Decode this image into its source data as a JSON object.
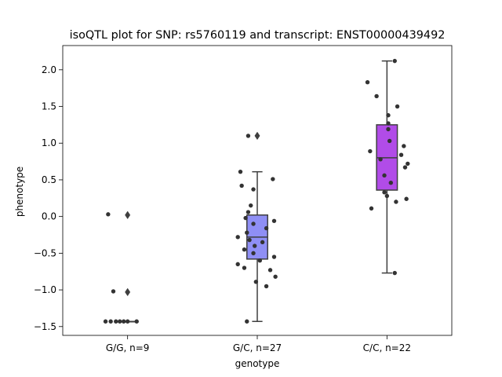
{
  "chart_data": {
    "type": "box",
    "title": "isoQTL plot for SNP: rs5760119 and transcript: ENST00000439492",
    "xlabel": "genotype",
    "ylabel": "phenotype",
    "ylim": [
      -1.62,
      2.33
    ],
    "yticks": [
      -1.5,
      -1.0,
      -0.5,
      0.0,
      0.5,
      1.0,
      1.5,
      2.0
    ],
    "ytick_labels": [
      "−1.5",
      "−1.0",
      "−0.5",
      "0.0",
      "0.5",
      "1.0",
      "1.5",
      "2.0"
    ],
    "categories": [
      "G/G, n=9",
      "G/C, n=27",
      "C/C, n=22"
    ],
    "grid": false,
    "boxes": [
      {
        "category": "G/G, n=9",
        "color": "#5e5ef2",
        "q1": -1.43,
        "median": -1.43,
        "q3": -1.43,
        "whisker_low": -1.43,
        "whisker_high": -1.43,
        "outliers": [
          0.02,
          -1.03
        ],
        "points": [
          {
            "dx": -0.15,
            "y": 0.03
          },
          {
            "dx": -0.11,
            "y": -1.02
          },
          {
            "dx": -0.17,
            "y": -1.43
          },
          {
            "dx": -0.13,
            "y": -1.43
          },
          {
            "dx": -0.09,
            "y": -1.43
          },
          {
            "dx": -0.06,
            "y": -1.43
          },
          {
            "dx": -0.03,
            "y": -1.43
          },
          {
            "dx": 0.0,
            "y": -1.43
          },
          {
            "dx": 0.07,
            "y": -1.43
          }
        ]
      },
      {
        "category": "G/C, n=27",
        "color": "#8f8ff5",
        "q1": -0.58,
        "median": -0.28,
        "q3": 0.02,
        "whisker_low": -1.43,
        "whisker_high": 0.61,
        "outliers": [
          1.1
        ],
        "points": [
          {
            "dx": -0.07,
            "y": 1.1
          },
          {
            "dx": -0.13,
            "y": 0.61
          },
          {
            "dx": 0.12,
            "y": 0.51
          },
          {
            "dx": -0.12,
            "y": 0.42
          },
          {
            "dx": -0.03,
            "y": 0.37
          },
          {
            "dx": -0.05,
            "y": 0.15
          },
          {
            "dx": -0.07,
            "y": 0.06
          },
          {
            "dx": -0.09,
            "y": -0.02
          },
          {
            "dx": 0.13,
            "y": -0.06
          },
          {
            "dx": -0.03,
            "y": -0.1
          },
          {
            "dx": 0.07,
            "y": -0.16
          },
          {
            "dx": -0.08,
            "y": -0.22
          },
          {
            "dx": -0.15,
            "y": -0.28
          },
          {
            "dx": -0.06,
            "y": -0.32
          },
          {
            "dx": 0.04,
            "y": -0.35
          },
          {
            "dx": -0.02,
            "y": -0.4
          },
          {
            "dx": -0.1,
            "y": -0.45
          },
          {
            "dx": -0.03,
            "y": -0.5
          },
          {
            "dx": 0.13,
            "y": -0.55
          },
          {
            "dx": 0.02,
            "y": -0.6
          },
          {
            "dx": -0.15,
            "y": -0.65
          },
          {
            "dx": -0.1,
            "y": -0.7
          },
          {
            "dx": 0.1,
            "y": -0.73
          },
          {
            "dx": 0.14,
            "y": -0.82
          },
          {
            "dx": -0.01,
            "y": -0.89
          },
          {
            "dx": 0.07,
            "y": -0.95
          },
          {
            "dx": -0.08,
            "y": -1.43
          }
        ]
      },
      {
        "category": "C/C, n=22",
        "color": "#b14ce8",
        "q1": 0.36,
        "median": 0.8,
        "q3": 1.25,
        "whisker_low": -0.77,
        "whisker_high": 2.12,
        "outliers": [],
        "points": [
          {
            "dx": 0.06,
            "y": 2.12
          },
          {
            "dx": -0.15,
            "y": 1.83
          },
          {
            "dx": -0.08,
            "y": 1.64
          },
          {
            "dx": 0.08,
            "y": 1.5
          },
          {
            "dx": 0.01,
            "y": 1.38
          },
          {
            "dx": 0.01,
            "y": 1.27
          },
          {
            "dx": 0.01,
            "y": 1.19
          },
          {
            "dx": 0.02,
            "y": 1.03
          },
          {
            "dx": 0.13,
            "y": 0.96
          },
          {
            "dx": -0.13,
            "y": 0.89
          },
          {
            "dx": 0.11,
            "y": 0.84
          },
          {
            "dx": -0.05,
            "y": 0.78
          },
          {
            "dx": 0.16,
            "y": 0.72
          },
          {
            "dx": 0.14,
            "y": 0.67
          },
          {
            "dx": -0.02,
            "y": 0.56
          },
          {
            "dx": 0.03,
            "y": 0.46
          },
          {
            "dx": -0.02,
            "y": 0.33
          },
          {
            "dx": 0.0,
            "y": 0.28
          },
          {
            "dx": 0.15,
            "y": 0.24
          },
          {
            "dx": 0.07,
            "y": 0.2
          },
          {
            "dx": -0.12,
            "y": 0.11
          },
          {
            "dx": 0.06,
            "y": -0.77
          }
        ]
      }
    ]
  }
}
